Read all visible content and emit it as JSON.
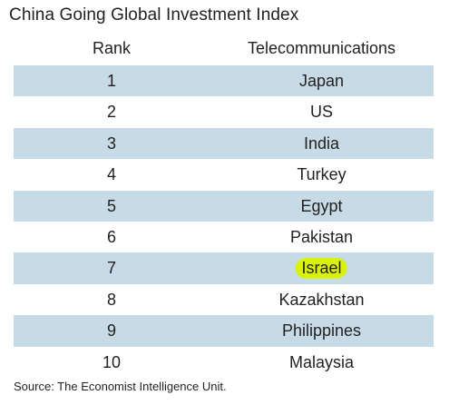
{
  "title": "China Going Global Investment Index",
  "table": {
    "headers": {
      "rank": "Rank",
      "country": "Telecommunications"
    },
    "rows": [
      {
        "rank": "1",
        "country": "Japan"
      },
      {
        "rank": "2",
        "country": "US"
      },
      {
        "rank": "3",
        "country": "India"
      },
      {
        "rank": "4",
        "country": "Turkey"
      },
      {
        "rank": "5",
        "country": "Egypt"
      },
      {
        "rank": "6",
        "country": "Pakistan"
      },
      {
        "rank": "7",
        "country": "Israel",
        "highlighted": true
      },
      {
        "rank": "8",
        "country": "Kazakhstan"
      },
      {
        "rank": "9",
        "country": "Philippines"
      },
      {
        "rank": "10",
        "country": "Malaysia"
      }
    ]
  },
  "source": "Source: The Economist Intelligence Unit.",
  "colors": {
    "row_stripe": "#c6dbe6",
    "highlight": "#d9f20a",
    "text": "#231f20"
  }
}
